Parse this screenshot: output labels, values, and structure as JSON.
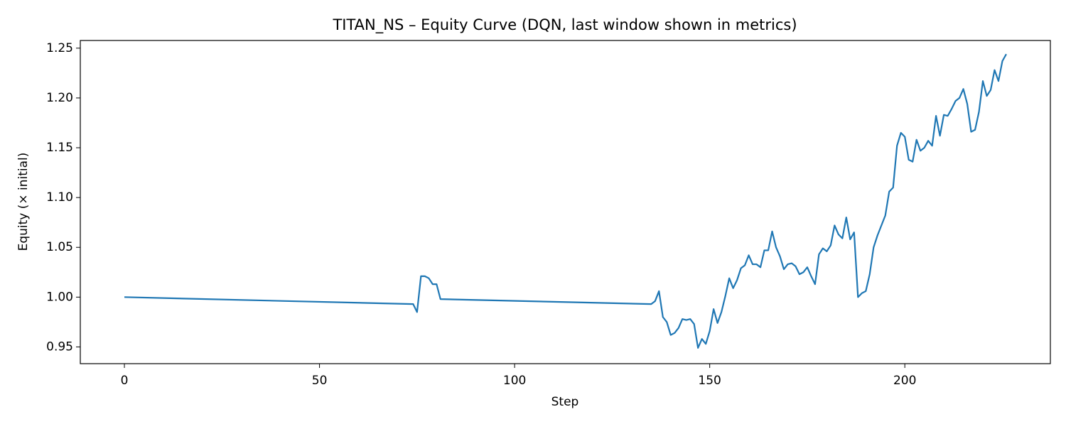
{
  "chart_data": {
    "type": "line",
    "title": "TITAN_NS – Equity Curve (DQN, last window shown in metrics)",
    "x_label": "Step",
    "y_label": "Equity (× initial)",
    "grid": false,
    "x": [
      0,
      74,
      75,
      76,
      77,
      78,
      79,
      80,
      81,
      135,
      136,
      137,
      138,
      139,
      140,
      141,
      142,
      143,
      144,
      145,
      146,
      147,
      148,
      149,
      150,
      151,
      152,
      153,
      154,
      155,
      156,
      157,
      158,
      159,
      160,
      161,
      162,
      163,
      164,
      165,
      166,
      167,
      168,
      169,
      170,
      171,
      172,
      173,
      174,
      175,
      176,
      177,
      178,
      179,
      180,
      181,
      182,
      183,
      184,
      185,
      186,
      187,
      188,
      189,
      190,
      191,
      192,
      193,
      194,
      195,
      196,
      197,
      198,
      199,
      200,
      201,
      202,
      203,
      204,
      205,
      206,
      207,
      208,
      209,
      210,
      211,
      212,
      213,
      214,
      215,
      216,
      217,
      218,
      219,
      220,
      221,
      222,
      223,
      224,
      225,
      226
    ],
    "series": [
      {
        "color": "#1f77b4",
        "values": [
          1.0,
          0.993,
          0.985,
          1.021,
          1.021,
          1.019,
          1.013,
          1.013,
          0.998,
          0.993,
          0.996,
          1.006,
          0.98,
          0.975,
          0.962,
          0.964,
          0.969,
          0.978,
          0.977,
          0.978,
          0.973,
          0.949,
          0.958,
          0.953,
          0.966,
          0.988,
          0.974,
          0.985,
          1.001,
          1.019,
          1.009,
          1.017,
          1.029,
          1.032,
          1.042,
          1.033,
          1.033,
          1.03,
          1.047,
          1.047,
          1.066,
          1.05,
          1.041,
          1.028,
          1.033,
          1.034,
          1.031,
          1.023,
          1.025,
          1.03,
          1.021,
          1.013,
          1.043,
          1.049,
          1.046,
          1.052,
          1.072,
          1.063,
          1.059,
          1.08,
          1.058,
          1.065,
          1.0,
          1.004,
          1.006,
          1.023,
          1.05,
          1.062,
          1.072,
          1.082,
          1.106,
          1.11,
          1.152,
          1.165,
          1.161,
          1.138,
          1.136,
          1.158,
          1.147,
          1.15,
          1.157,
          1.152,
          1.182,
          1.162,
          1.183,
          1.182,
          1.189,
          1.197,
          1.2,
          1.209,
          1.194,
          1.166,
          1.168,
          1.186,
          1.217,
          1.202,
          1.208,
          1.228,
          1.217,
          1.237,
          1.244
        ]
      }
    ],
    "xlim": [
      -11.3,
      237.3
    ],
    "xticks": [
      0,
      50,
      100,
      150,
      200
    ],
    "ylim": [
      0.9332,
      1.2577
    ],
    "yticks": [
      0.95,
      {
        "value": 1.0,
        "label": "1.00"
      },
      1.05,
      {
        "value": 1.1,
        "label": "1.10"
      },
      1.15,
      {
        "value": 1.2,
        "label": "1.20"
      },
      1.25
    ]
  }
}
